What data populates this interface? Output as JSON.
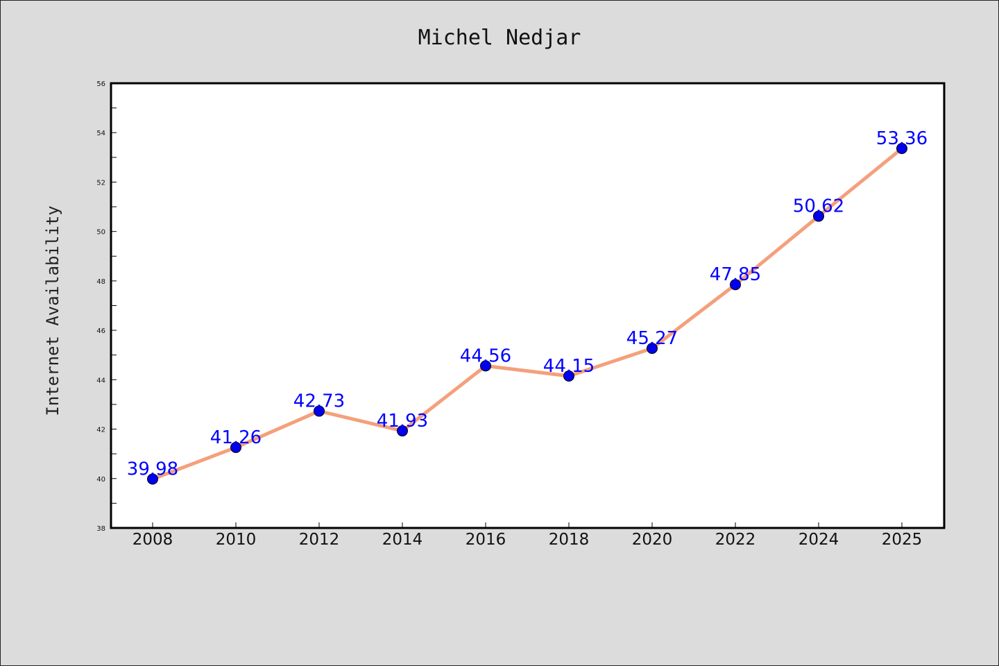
{
  "chart_data": {
    "type": "line",
    "title": "Michel Nedjar",
    "xlabel": "",
    "ylabel": "Internet Availability",
    "x": [
      "2008",
      "2010",
      "2012",
      "2014",
      "2016",
      "2018",
      "2020",
      "2022",
      "2024",
      "2025"
    ],
    "series": [
      {
        "values": [
          39.98,
          41.26,
          42.73,
          41.93,
          44.56,
          44.15,
          45.27,
          47.85,
          50.62,
          53.36
        ]
      }
    ],
    "data_labels": [
      "39.98",
      "41.26",
      "42.73",
      "41.93",
      "44.56",
      "44.15",
      "45.27",
      "47.85",
      "50.62",
      "53.36"
    ],
    "y_ticks": [
      "38",
      "40",
      "42",
      "44",
      "46",
      "48",
      "50",
      "52",
      "54",
      "56"
    ],
    "ylim": [
      38,
      56
    ],
    "grid": false,
    "legend": "none",
    "colors": {
      "background": "#dcdcdc",
      "plot_background": "#ffffff",
      "line": "#f4a07c",
      "marker": "#0000ee",
      "data_label": "#0000ff"
    }
  }
}
